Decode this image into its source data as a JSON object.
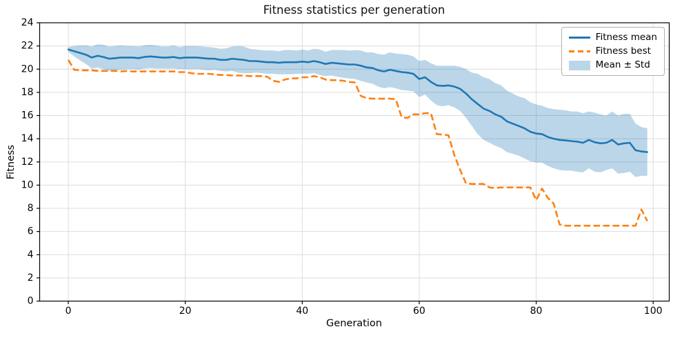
{
  "chart_data": {
    "type": "line",
    "title": "Fitness statistics per generation",
    "xlabel": "Generation",
    "ylabel": "Fitness",
    "xlim": [
      -4.9,
      102.75
    ],
    "ylim": [
      0,
      24
    ],
    "xticks": [
      0,
      20,
      40,
      60,
      80,
      100
    ],
    "yticks": [
      0,
      2,
      4,
      6,
      8,
      10,
      12,
      14,
      16,
      18,
      20,
      22,
      24
    ],
    "grid": true,
    "legend_position": "upper right",
    "colors": {
      "grid": "#dcdcdc",
      "spine": "#000000",
      "text": "#000000"
    },
    "x": [
      0,
      1,
      2,
      3,
      4,
      5,
      6,
      7,
      8,
      9,
      10,
      11,
      12,
      13,
      14,
      15,
      16,
      17,
      18,
      19,
      20,
      21,
      22,
      23,
      24,
      25,
      26,
      27,
      28,
      29,
      30,
      31,
      32,
      33,
      34,
      35,
      36,
      37,
      38,
      39,
      40,
      41,
      42,
      43,
      44,
      45,
      46,
      47,
      48,
      49,
      50,
      51,
      52,
      53,
      54,
      55,
      56,
      57,
      58,
      59,
      60,
      61,
      62,
      63,
      64,
      65,
      66,
      67,
      68,
      69,
      70,
      71,
      72,
      73,
      74,
      75,
      76,
      77,
      78,
      79,
      80,
      81,
      82,
      83,
      84,
      85,
      86,
      87,
      88,
      89,
      90,
      91,
      92,
      93,
      94,
      95,
      96,
      97,
      98,
      99
    ],
    "series": [
      {
        "name": "Fitness mean",
        "style": "solid",
        "color": "#1f77b4",
        "values": [
          21.7,
          21.55,
          21.4,
          21.25,
          21.0,
          21.15,
          21.05,
          20.9,
          20.95,
          21.0,
          21.0,
          21.0,
          20.95,
          21.05,
          21.1,
          21.05,
          21.0,
          21.0,
          21.05,
          20.95,
          21.0,
          21.0,
          21.0,
          20.95,
          20.9,
          20.9,
          20.8,
          20.8,
          20.9,
          20.85,
          20.8,
          20.7,
          20.7,
          20.65,
          20.6,
          20.6,
          20.55,
          20.6,
          20.6,
          20.6,
          20.65,
          20.6,
          20.7,
          20.6,
          20.45,
          20.55,
          20.5,
          20.45,
          20.4,
          20.4,
          20.3,
          20.15,
          20.1,
          19.9,
          19.8,
          19.95,
          19.85,
          19.75,
          19.7,
          19.6,
          19.15,
          19.3,
          18.9,
          18.6,
          18.55,
          18.6,
          18.5,
          18.3,
          17.9,
          17.4,
          17.0,
          16.6,
          16.4,
          16.1,
          15.9,
          15.5,
          15.3,
          15.1,
          14.9,
          14.6,
          14.45,
          14.4,
          14.15,
          14.0,
          13.9,
          13.85,
          13.8,
          13.75,
          13.65,
          13.9,
          13.7,
          13.6,
          13.65,
          13.9,
          13.5,
          13.6,
          13.65,
          13.0,
          12.9,
          12.85
        ]
      },
      {
        "name": "Fitness best",
        "style": "dashed",
        "color": "#ff7f0e",
        "values": [
          20.8,
          19.95,
          19.9,
          19.9,
          19.9,
          19.85,
          19.85,
          19.85,
          19.85,
          19.8,
          19.85,
          19.8,
          19.8,
          19.8,
          19.8,
          19.8,
          19.8,
          19.8,
          19.8,
          19.75,
          19.75,
          19.65,
          19.6,
          19.6,
          19.6,
          19.55,
          19.5,
          19.5,
          19.45,
          19.45,
          19.45,
          19.4,
          19.4,
          19.4,
          19.35,
          19.0,
          18.9,
          19.1,
          19.2,
          19.2,
          19.3,
          19.3,
          19.4,
          19.3,
          19.1,
          19.05,
          19.05,
          19.0,
          18.9,
          18.85,
          17.7,
          17.5,
          17.45,
          17.45,
          17.45,
          17.45,
          17.4,
          15.85,
          15.8,
          16.1,
          16.1,
          16.2,
          16.2,
          14.4,
          14.35,
          14.3,
          12.6,
          11.3,
          10.15,
          10.1,
          10.1,
          10.1,
          9.8,
          9.75,
          9.8,
          9.8,
          9.8,
          9.8,
          9.8,
          9.8,
          8.7,
          9.7,
          8.9,
          8.4,
          6.6,
          6.5,
          6.5,
          6.5,
          6.5,
          6.5,
          6.5,
          6.5,
          6.5,
          6.5,
          6.5,
          6.5,
          6.5,
          6.5,
          7.9,
          6.9
        ]
      }
    ],
    "band": {
      "name": "Mean ± Std",
      "color": "#1f77b4",
      "opacity": 0.3,
      "std": [
        0.2,
        0.45,
        0.65,
        0.8,
        0.95,
        1.0,
        1.05,
        1.05,
        1.05,
        1.05,
        1.0,
        1.0,
        1.0,
        1.0,
        1.0,
        1.0,
        0.95,
        0.95,
        1.0,
        0.95,
        1.0,
        1.0,
        1.0,
        1.0,
        1.0,
        0.95,
        0.95,
        1.0,
        1.05,
        1.15,
        1.15,
        1.05,
        1.0,
        1.0,
        1.0,
        1.0,
        1.0,
        1.05,
        1.05,
        1.0,
        1.05,
        1.0,
        1.05,
        1.1,
        1.05,
        1.1,
        1.15,
        1.2,
        1.2,
        1.25,
        1.3,
        1.3,
        1.35,
        1.4,
        1.45,
        1.5,
        1.5,
        1.55,
        1.55,
        1.5,
        1.55,
        1.5,
        1.6,
        1.7,
        1.75,
        1.7,
        1.8,
        1.9,
        2.1,
        2.3,
        2.6,
        2.7,
        2.75,
        2.7,
        2.7,
        2.65,
        2.6,
        2.55,
        2.6,
        2.55,
        2.5,
        2.45,
        2.5,
        2.55,
        2.6,
        2.6,
        2.55,
        2.6,
        2.55,
        2.45,
        2.55,
        2.5,
        2.35,
        2.45,
        2.5,
        2.55,
        2.5,
        2.3,
        2.1,
        2.05
      ]
    },
    "legend": {
      "items": [
        {
          "label": "Fitness mean",
          "glyph": "solid-line",
          "color": "#1f77b4"
        },
        {
          "label": "Fitness best",
          "glyph": "dashed-line",
          "color": "#ff7f0e"
        },
        {
          "label": "Mean ± Std",
          "glyph": "patch",
          "color": "#bcd6e9"
        }
      ]
    }
  }
}
